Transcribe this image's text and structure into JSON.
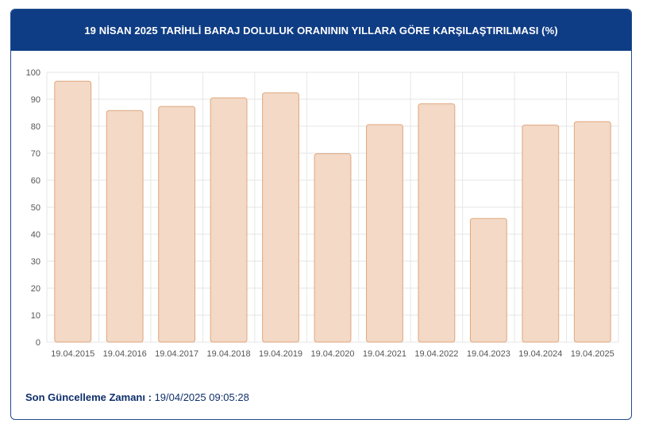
{
  "header": {
    "title": "19 NİSAN 2025 TARİHLİ BARAJ DOLULUK ORANININ YILLARA GÖRE KARŞILAŞTIRILMASI (%)"
  },
  "footer": {
    "label": "Son Güncelleme Zamanı :",
    "value": "19/04/2025 09:05:28"
  },
  "colors": {
    "header_bg": "#0f3d85",
    "bar_fill": "#f3d9c6",
    "bar_stroke": "#e0a77f",
    "grid": "#e6e6e6",
    "footer_text": "#0f2f6b"
  },
  "chart_data": {
    "type": "bar",
    "title": "19 NİSAN 2025 TARİHLİ BARAJ DOLULUK ORANININ YILLARA GÖRE KARŞILAŞTIRILMASI (%)",
    "categories": [
      "19.04.2015",
      "19.04.2016",
      "19.04.2017",
      "19.04.2018",
      "19.04.2019",
      "19.04.2020",
      "19.04.2021",
      "19.04.2022",
      "19.04.2023",
      "19.04.2024",
      "19.04.2025"
    ],
    "values": [
      96.7,
      85.8,
      87.3,
      90.5,
      92.4,
      69.8,
      80.6,
      88.3,
      45.8,
      80.4,
      81.7
    ],
    "ylim": [
      0,
      100
    ],
    "yticks": [
      "0",
      "10",
      "20",
      "30",
      "40",
      "50",
      "60",
      "70",
      "80",
      "90",
      "100"
    ],
    "grid": true,
    "xlabel": "",
    "ylabel": ""
  }
}
